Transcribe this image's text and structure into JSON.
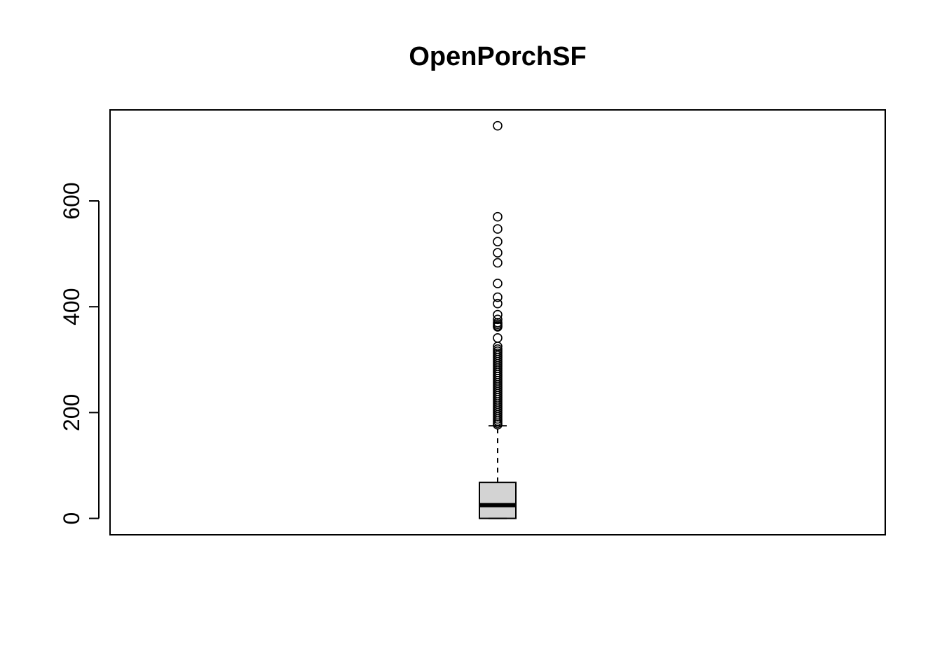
{
  "chart_data": {
    "type": "boxplot",
    "title": "OpenPorchSF",
    "xlabel": "",
    "ylabel": "",
    "ylim": [
      -31,
      772
    ],
    "yticks": [
      0,
      200,
      400,
      600
    ],
    "grid": false,
    "box": {
      "min": 0,
      "q1": 0,
      "median": 25,
      "q3": 68,
      "whisker_low": 0,
      "whisker_high": 175
    },
    "outliers": [
      742,
      570,
      547,
      523,
      502,
      483,
      444,
      418,
      406,
      385,
      376,
      370,
      367,
      364,
      362,
      341,
      325,
      320,
      316,
      312,
      308,
      304,
      300,
      296,
      292,
      288,
      284,
      280,
      276,
      272,
      268,
      264,
      260,
      256,
      252,
      248,
      244,
      240,
      236,
      232,
      228,
      224,
      220,
      216,
      212,
      208,
      204,
      200,
      196,
      192,
      188,
      184,
      180,
      177
    ]
  }
}
